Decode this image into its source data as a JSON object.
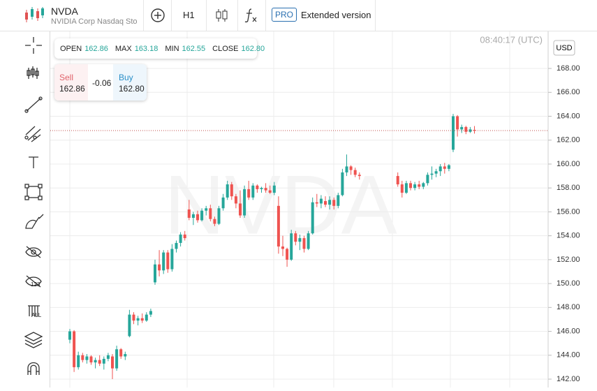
{
  "header": {
    "symbol": "NVDA",
    "name": "NVIDIA Corp Nasdaq Sto",
    "timeframe": "H1",
    "pro_badge": "PRO",
    "extended": "Extended version"
  },
  "toolbar": {
    "icon_labels": [
      "123",
      "ALL"
    ]
  },
  "ohlc_bar": {
    "open_label": "OPEN",
    "open": "162.86",
    "max_label": "MAX",
    "max": "163.18",
    "min_label": "MIN",
    "min": "162.55",
    "close_label": "CLOSE",
    "close": "162.80"
  },
  "trade_panel": {
    "sell_label": "Sell",
    "sell": "162.86",
    "spread": "-0.06",
    "buy_label": "Buy",
    "buy": "162.80"
  },
  "chart_data": {
    "type": "candlestick",
    "watermark": "NVDA",
    "time": "08:40:17 (UTC)",
    "currency": "USD",
    "categories": [
      null,
      null,
      null,
      null,
      null,
      null,
      null,
      null,
      null,
      null,
      null,
      null,
      null,
      null,
      null,
      null,
      null,
      null,
      null,
      null,
      null,
      null,
      null,
      null,
      null,
      null,
      null,
      null,
      null,
      null,
      null,
      null,
      null,
      null,
      null,
      null,
      null,
      null,
      null,
      null,
      null,
      null,
      null,
      null,
      null,
      null,
      null,
      null,
      null,
      null,
      null,
      null,
      null,
      null,
      null,
      null,
      null,
      null,
      null,
      null,
      null,
      null,
      null,
      null,
      null,
      null,
      null,
      null,
      null,
      null,
      null,
      null,
      null,
      null,
      null,
      null,
      null,
      null,
      null,
      null,
      null,
      null,
      null,
      null,
      null,
      null,
      null,
      null,
      null,
      null,
      null,
      null,
      null,
      null,
      null,
      null
    ],
    "open": [
      145.3,
      146.0,
      143.0,
      144.0,
      143.6,
      143.9,
      143.4,
      143.6,
      143.3,
      143.7,
      143.9,
      142.9,
      144.5,
      143.9,
      145.6,
      147.4,
      146.9,
      147.1,
      146.9,
      147.4,
      150.1,
      151.6,
      151.1,
      152.6,
      151.2,
      152.9,
      153.4,
      154.1,
      156.2,
      155.5,
      155.8,
      155.3,
      156.1,
      156.3,
      155.4,
      155.0,
      156.3,
      157.2,
      158.3,
      157.3,
      156.7,
      155.7,
      157.9,
      157.2,
      158.2,
      157.9,
      158.0,
      157.8,
      157.6,
      156.5,
      153.1,
      152.9,
      152.0,
      154.2,
      153.5,
      153.8,
      152.9,
      154.2,
      156.8,
      156.7,
      156.9,
      156.6,
      157.0,
      156.5,
      157.4,
      159.3,
      159.8,
      159.5,
      159.1,
      null,
      null,
      null,
      null,
      null,
      null,
      null,
      null,
      159.0,
      158.3,
      157.6,
      158.4,
      158.0,
      158.3,
      158.1,
      158.4,
      159.1,
      159.2,
      159.4,
      159.8,
      159.6,
      161.2,
      164.0,
      162.9,
      163.1,
      162.7,
      162.86
    ],
    "high": [
      146.2,
      146.1,
      144.3,
      144.2,
      144.1,
      144.0,
      143.8,
      144.0,
      143.9,
      144.2,
      144.1,
      144.8,
      144.6,
      144.3,
      147.8,
      147.6,
      147.3,
      147.5,
      147.6,
      147.9,
      152.0,
      152.8,
      152.8,
      152.8,
      153.3,
      153.6,
      154.3,
      154.4,
      157.0,
      156.0,
      156.1,
      156.3,
      156.5,
      156.6,
      155.6,
      156.5,
      157.5,
      158.6,
      158.5,
      157.5,
      157.8,
      158.2,
      158.6,
      158.4,
      158.3,
      158.1,
      158.4,
      158.2,
      158.5,
      157.3,
      154.0,
      153.0,
      154.5,
      154.4,
      154.1,
      154.0,
      154.4,
      157.2,
      157.5,
      157.4,
      157.3,
      157.3,
      157.2,
      157.6,
      159.6,
      160.8,
      159.9,
      159.7,
      159.3,
      null,
      null,
      null,
      null,
      null,
      null,
      null,
      null,
      159.3,
      158.6,
      158.6,
      158.6,
      158.5,
      158.6,
      158.5,
      159.3,
      159.8,
      159.6,
      160.0,
      160.1,
      160.0,
      164.2,
      164.1,
      163.3,
      163.2,
      163.1,
      163.18
    ],
    "low": [
      145.0,
      142.6,
      142.8,
      143.4,
      143.3,
      143.2,
      142.9,
      143.1,
      142.8,
      143.5,
      142.0,
      142.7,
      143.7,
      143.6,
      145.5,
      146.6,
      146.5,
      146.7,
      146.8,
      147.2,
      149.9,
      150.6,
      150.8,
      150.9,
      151.0,
      152.6,
      153.1,
      153.6,
      155.3,
      154.9,
      155.1,
      155.2,
      155.7,
      155.2,
      154.8,
      154.9,
      156.1,
      157.0,
      157.0,
      156.3,
      155.5,
      155.5,
      157.0,
      157.0,
      157.6,
      157.6,
      157.6,
      157.5,
      157.4,
      152.5,
      152.3,
      151.4,
      151.9,
      153.2,
      152.8,
      152.6,
      152.8,
      154.1,
      156.4,
      156.3,
      156.4,
      156.2,
      156.2,
      156.3,
      157.3,
      159.0,
      159.1,
      158.9,
      158.7,
      null,
      null,
      null,
      null,
      null,
      null,
      null,
      null,
      158.1,
      157.2,
      157.5,
      157.8,
      157.8,
      157.9,
      157.9,
      158.2,
      158.7,
      158.9,
      159.0,
      159.2,
      159.4,
      161.0,
      162.3,
      162.6,
      162.5,
      162.6,
      162.55
    ],
    "close": [
      146.0,
      143.0,
      144.0,
      143.6,
      143.9,
      143.4,
      143.6,
      143.3,
      143.7,
      144.0,
      142.9,
      144.5,
      143.9,
      144.1,
      147.4,
      146.9,
      147.1,
      146.9,
      147.4,
      147.7,
      151.6,
      151.1,
      152.6,
      151.2,
      152.9,
      153.4,
      154.1,
      153.8,
      155.5,
      155.8,
      155.3,
      156.1,
      156.3,
      155.4,
      155.0,
      156.3,
      157.2,
      158.3,
      157.3,
      156.7,
      155.7,
      157.9,
      157.2,
      158.2,
      157.9,
      158.0,
      157.8,
      157.6,
      158.2,
      153.1,
      152.9,
      152.0,
      154.2,
      153.5,
      153.8,
      152.9,
      154.2,
      156.8,
      156.7,
      157.1,
      156.6,
      157.0,
      156.5,
      157.4,
      159.3,
      159.8,
      159.5,
      159.1,
      159.0,
      null,
      null,
      null,
      null,
      null,
      null,
      null,
      null,
      158.3,
      157.6,
      158.4,
      158.0,
      158.3,
      158.1,
      158.4,
      159.1,
      159.2,
      159.4,
      159.8,
      159.6,
      159.9,
      164.0,
      162.9,
      163.1,
      162.7,
      162.9,
      162.8
    ],
    "up_color": "#26a69a",
    "down_color": "#ef5350",
    "last_line_color": "#c0504d",
    "ylim": [
      141.3,
      171.1
    ],
    "yticks": [
      {
        "value": 142,
        "label": "142.00"
      },
      {
        "value": 144,
        "label": "144.00"
      },
      {
        "value": 146,
        "label": "146.00"
      },
      {
        "value": 148,
        "label": "148.00"
      },
      {
        "value": 150,
        "label": "150.00"
      },
      {
        "value": 152,
        "label": "152.00"
      },
      {
        "value": 154,
        "label": "154.00"
      },
      {
        "value": 156,
        "label": "156.00"
      },
      {
        "value": 158,
        "label": "158.00"
      },
      {
        "value": 160,
        "label": "160.00"
      },
      {
        "value": 162,
        "label": "162.00"
      },
      {
        "value": 164,
        "label": "164.00"
      },
      {
        "value": 166,
        "label": "166.00"
      },
      {
        "value": 168,
        "label": "168.00"
      }
    ],
    "grid": true
  }
}
